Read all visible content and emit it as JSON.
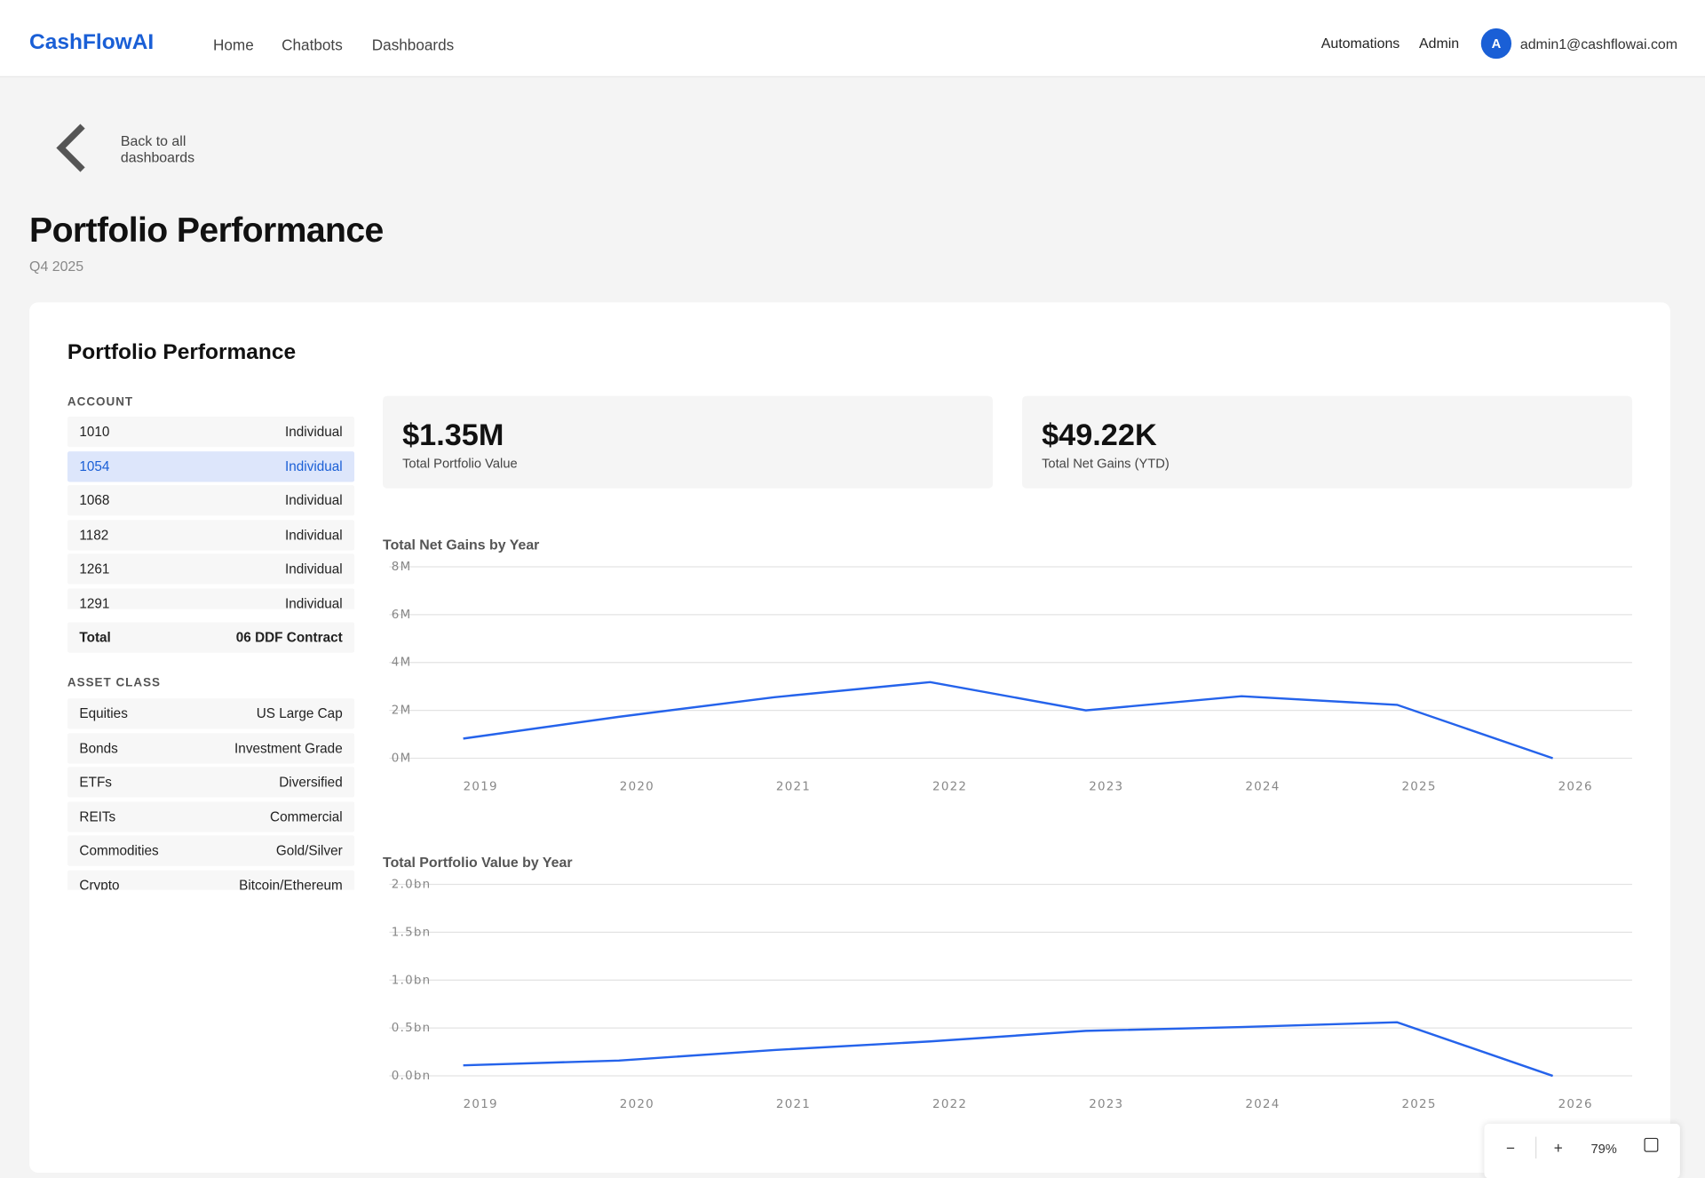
{
  "nav": {
    "logo": "CashFlowAI",
    "links": [
      "Home",
      "Chatbots",
      "Dashboards"
    ],
    "right_links": [
      "Automations",
      "Admin"
    ],
    "avatar": "A",
    "email": "admin1@cashflowai.com"
  },
  "back_link": "Back to all dashboards",
  "header": {
    "title": "Portfolio Performance",
    "subtitle": "Q4 2025"
  },
  "card": {
    "title": "Portfolio Performance",
    "account": {
      "label": "ACCOUNT",
      "selected_row": 1,
      "rows": [
        {
          "id": "1010",
          "type": "Individual"
        },
        {
          "id": "1054",
          "type": "Individual"
        },
        {
          "id": "1068",
          "type": "Individual"
        },
        {
          "id": "1182",
          "type": "Individual"
        },
        {
          "id": "1261",
          "type": "Individual"
        },
        {
          "id": "1291",
          "type": "Individual"
        }
      ],
      "total": {
        "label": "Total",
        "value": "06 DDF Contract"
      }
    },
    "asset_class": {
      "label": "ASSET CLASS",
      "rows": [
        {
          "name": "Equities",
          "detail": "US Large Cap"
        },
        {
          "name": "Bonds",
          "detail": "Investment Grade"
        },
        {
          "name": "ETFs",
          "detail": "Diversified"
        },
        {
          "name": "REITs",
          "detail": "Commercial"
        },
        {
          "name": "Commodities",
          "detail": "Gold/Silver"
        },
        {
          "name": "Crypto",
          "detail": "Bitcoin/Ethereum"
        }
      ]
    },
    "kpis": [
      {
        "value": "$1.35M",
        "label": "Total Portfolio Value"
      },
      {
        "value": "$49.22K",
        "label": "Total Net Gains (YTD)"
      }
    ]
  },
  "chart_data": [
    {
      "type": "line",
      "title": "Total Net Gains by Year",
      "color": "#2563eb",
      "grid": true,
      "categories": [
        "2019",
        "2020",
        "2021",
        "2022",
        "2023",
        "2024",
        "2025",
        "2026"
      ],
      "values": [
        0.82,
        1.73,
        2.55,
        3.18,
        2.0,
        2.59,
        2.23,
        0
      ],
      "ylim": [
        0,
        8
      ],
      "yticks": [
        {
          "value": 0,
          "label": "0M"
        },
        {
          "value": 2,
          "label": "2M"
        },
        {
          "value": 4,
          "label": "4M"
        },
        {
          "value": 6,
          "label": "6M"
        },
        {
          "value": 8,
          "label": "8M"
        }
      ]
    },
    {
      "type": "line",
      "title": "Total Portfolio Value by Year",
      "color": "#2563eb",
      "grid": true,
      "categories": [
        "2019",
        "2020",
        "2021",
        "2022",
        "2023",
        "2024",
        "2025",
        "2026"
      ],
      "values": [
        0.11,
        0.16,
        0.27,
        0.36,
        0.47,
        0.51,
        0.56,
        0
      ],
      "ylim": [
        0,
        2
      ],
      "yticks": [
        {
          "value": 0,
          "label": "0.0bn"
        },
        {
          "value": 0.5,
          "label": "0.5bn"
        },
        {
          "value": 1,
          "label": "1.0bn"
        },
        {
          "value": 1.5,
          "label": "1.5bn"
        },
        {
          "value": 2,
          "label": "2.0bn"
        }
      ]
    }
  ],
  "zoom": {
    "out": "−",
    "in": "+",
    "level": "79%"
  }
}
